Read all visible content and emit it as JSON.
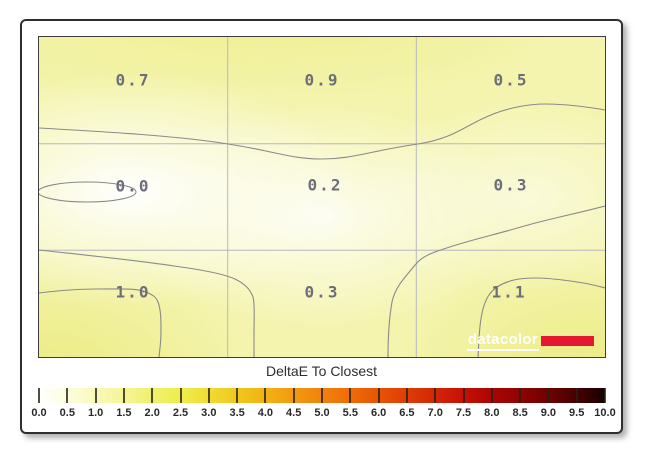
{
  "chart_data": {
    "type": "heatmap",
    "title": "DeltaE To Closest",
    "rows": 3,
    "cols": 3,
    "values": [
      [
        0.7,
        0.9,
        0.5
      ],
      [
        0.0,
        0.2,
        0.3
      ],
      [
        1.0,
        0.3,
        1.1
      ]
    ],
    "cell_labels": [
      "0.7",
      "0.9",
      "0.5",
      "0.0",
      "0.2",
      "0.3",
      "1.0",
      "0.3",
      "1.1"
    ],
    "value_label_color": "#6e6e7a",
    "grid_color": "#b8b8c0",
    "contour_color": "#8a8a8a",
    "low_color": "#ffffff",
    "high_region_color": "#ebeb80",
    "colorbar": {
      "min": 0.0,
      "max": 10.0,
      "step": 0.5,
      "tick_labels": [
        "0.0",
        "0.5",
        "1.0",
        "1.5",
        "2.0",
        "2.5",
        "3.0",
        "3.5",
        "4.0",
        "4.5",
        "5.0",
        "5.5",
        "6.0",
        "6.5",
        "7.0",
        "7.5",
        "8.0",
        "8.5",
        "9.0",
        "9.5",
        "10.0"
      ],
      "gradient_stops": [
        "#ffffff",
        "#fdfdde",
        "#f9f9bc",
        "#f5f596",
        "#f0f06e",
        "#eeee4e",
        "#efdc34",
        "#f0c81e",
        "#f1b214",
        "#f29a10",
        "#f0830c",
        "#ed6c09",
        "#e75407",
        "#de3d06",
        "#d22606",
        "#c41106",
        "#ab0505",
        "#8f0303",
        "#6f0101",
        "#470000",
        "#160000"
      ]
    }
  },
  "branding": {
    "logo_text": "datacolor",
    "logo_bar_color": "#e21931"
  }
}
